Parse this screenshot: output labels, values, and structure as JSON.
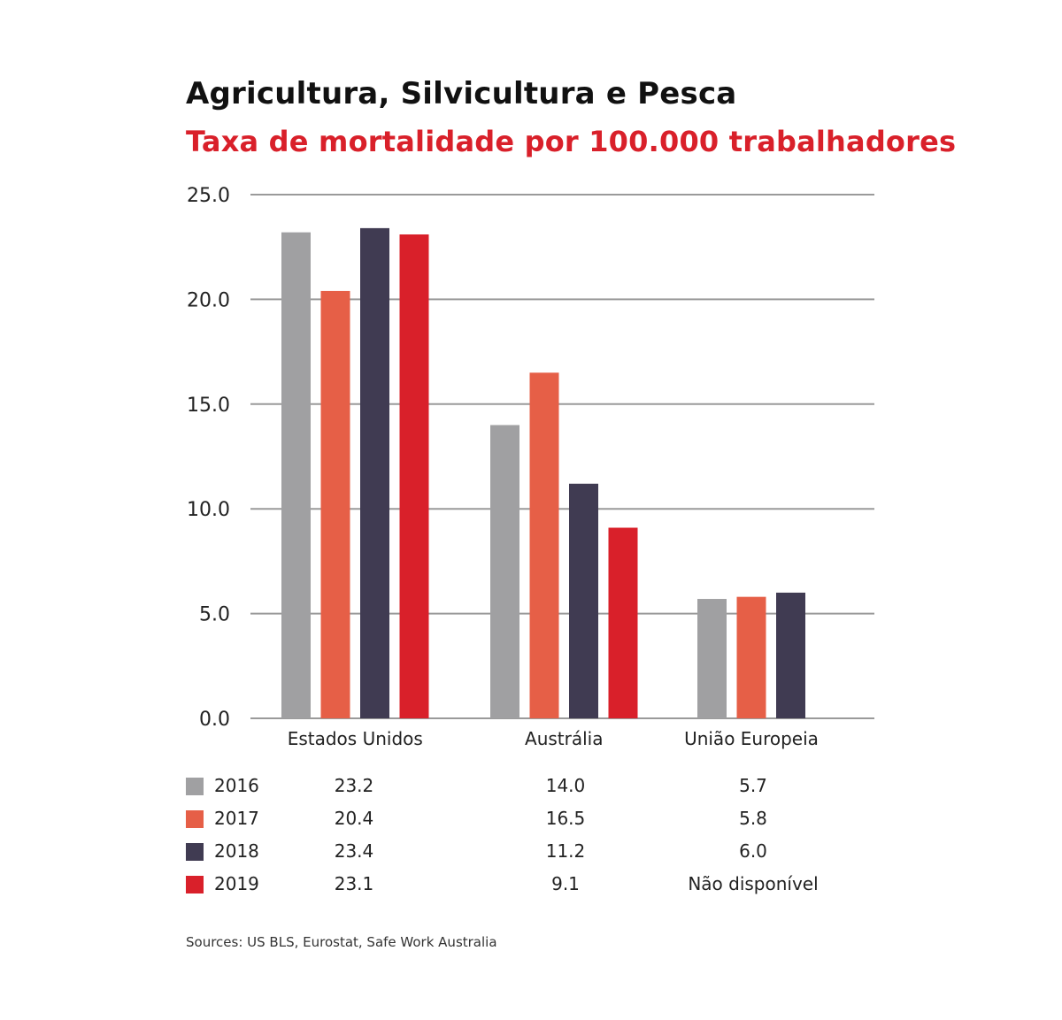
{
  "chart_data": {
    "type": "bar",
    "title": "Agricultura, Silvicultura e Pesca",
    "subtitle": "Taxa de mortalidade por 100.000 trabalhadores",
    "categories": [
      "Estados Unidos",
      "Austrália",
      "União Europeia"
    ],
    "series": [
      {
        "name": "2016",
        "color": "#a0a0a2",
        "values": [
          23.2,
          14.0,
          5.7
        ],
        "labels": [
          "23.2",
          "14.0",
          "5.7"
        ]
      },
      {
        "name": "2017",
        "color": "#e65f47",
        "values": [
          20.4,
          16.5,
          5.8
        ],
        "labels": [
          "20.4",
          "16.5",
          "5.8"
        ]
      },
      {
        "name": "2018",
        "color": "#403b52",
        "values": [
          23.4,
          11.2,
          6.0
        ],
        "labels": [
          "23.4",
          "11.2",
          "6.0"
        ]
      },
      {
        "name": "2019",
        "color": "#d9202a",
        "values": [
          23.1,
          9.1,
          null
        ],
        "labels": [
          "23.1",
          "9.1",
          "Não disponível"
        ]
      }
    ],
    "ylim": [
      0,
      25
    ],
    "yticks": [
      "0.0",
      "5.0",
      "10.0",
      "15.0",
      "20.0",
      "25.0"
    ],
    "grid": true
  },
  "source": "Sources: US BLS, Eurostat, Safe Work Australia"
}
